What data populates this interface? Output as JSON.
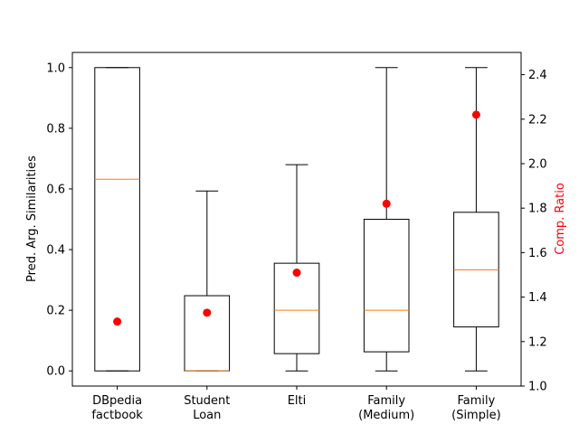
{
  "chart_data": {
    "type": "box",
    "categories": [
      "DBpedia\nfactbook",
      "Student\nLoan",
      "Elti",
      "Family\n(Medium)",
      "Family\n(Simple)"
    ],
    "boxes": [
      {
        "whisker_low": 0.0,
        "q1": 0.0,
        "median": 0.632,
        "q3": 1.0,
        "whisker_high": 1.0
      },
      {
        "whisker_low": 0.0,
        "q1": 0.0,
        "median": 0.0,
        "q3": 0.248,
        "whisker_high": 0.593
      },
      {
        "whisker_low": 0.0,
        "q1": 0.057,
        "median": 0.2,
        "q3": 0.355,
        "whisker_high": 0.68
      },
      {
        "whisker_low": 0.0,
        "q1": 0.063,
        "median": 0.2,
        "q3": 0.5,
        "whisker_high": 1.0
      },
      {
        "whisker_low": 0.0,
        "q1": 0.145,
        "median": 0.333,
        "q3": 0.523,
        "whisker_high": 1.0
      }
    ],
    "comp_ratio": [
      1.29,
      1.33,
      1.51,
      1.82,
      2.22
    ],
    "ylabel": "Pred. Arg. Similarities",
    "y2label": "Comp. Ratio",
    "ylim": [
      -0.05,
      1.05
    ],
    "y2lim": [
      1.0,
      2.5
    ],
    "yticks": [
      "0.0",
      "0.2",
      "0.4",
      "0.6",
      "0.8",
      "1.0"
    ],
    "y2ticks": [
      "1.0",
      "1.2",
      "1.4",
      "1.6",
      "1.8",
      "2.0",
      "2.2",
      "2.4"
    ],
    "colors": {
      "box": "#000000",
      "median": "#ff7f0e",
      "marker": "#ff0000",
      "y2label": "#ff0000"
    },
    "grid": false
  }
}
